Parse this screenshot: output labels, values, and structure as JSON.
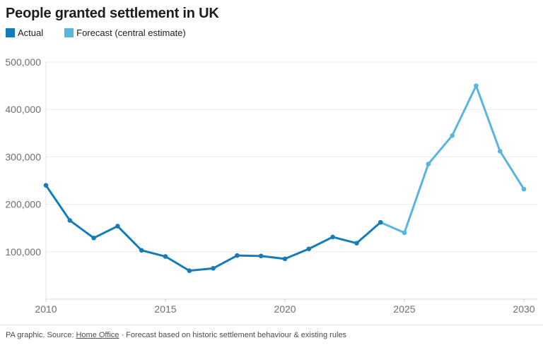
{
  "header": {
    "title": "People granted settlement in UK"
  },
  "legend": [
    {
      "label": "Actual",
      "color": "#147cb8"
    },
    {
      "label": "Forecast (central estimate)",
      "color": "#58b6de"
    }
  ],
  "footer": {
    "prefix": "PA graphic. Source: ",
    "source_link": "Home Office",
    "suffix": " · Forecast based on historic settlement behaviour & existing rules"
  },
  "chart_data": {
    "type": "line",
    "title": "People granted settlement in UK",
    "xlabel": "",
    "ylabel": "",
    "xlim": [
      2010,
      2030
    ],
    "ylim": [
      0,
      500000
    ],
    "xticks": [
      2010,
      2015,
      2020,
      2025,
      2030
    ],
    "yticks": [
      100000,
      200000,
      300000,
      400000,
      500000
    ],
    "grid": "horizontal",
    "legend_position": "top-left",
    "series": [
      {
        "name": "Actual",
        "color": "#147cb8",
        "x": [
          2010,
          2011,
          2012,
          2013,
          2014,
          2015,
          2016,
          2017,
          2018,
          2019,
          2020,
          2021,
          2022,
          2023,
          2024
        ],
        "values": [
          240000,
          166000,
          129000,
          154000,
          103000,
          90000,
          60000,
          65000,
          92000,
          91000,
          85000,
          106000,
          131000,
          118000,
          162000
        ]
      },
      {
        "name": "Forecast (central estimate)",
        "color": "#58b6de",
        "x": [
          2024,
          2025,
          2026,
          2027,
          2028,
          2029,
          2030
        ],
        "values": [
          162000,
          140000,
          285000,
          345000,
          450000,
          312000,
          232000
        ]
      }
    ]
  },
  "colors": {
    "axis_label": "#6e6e73",
    "gridline": "#ebebeb",
    "baseline": "#d9d9d9",
    "left_axis": "#e3e3e3",
    "tick": "#cfcfcf"
  }
}
